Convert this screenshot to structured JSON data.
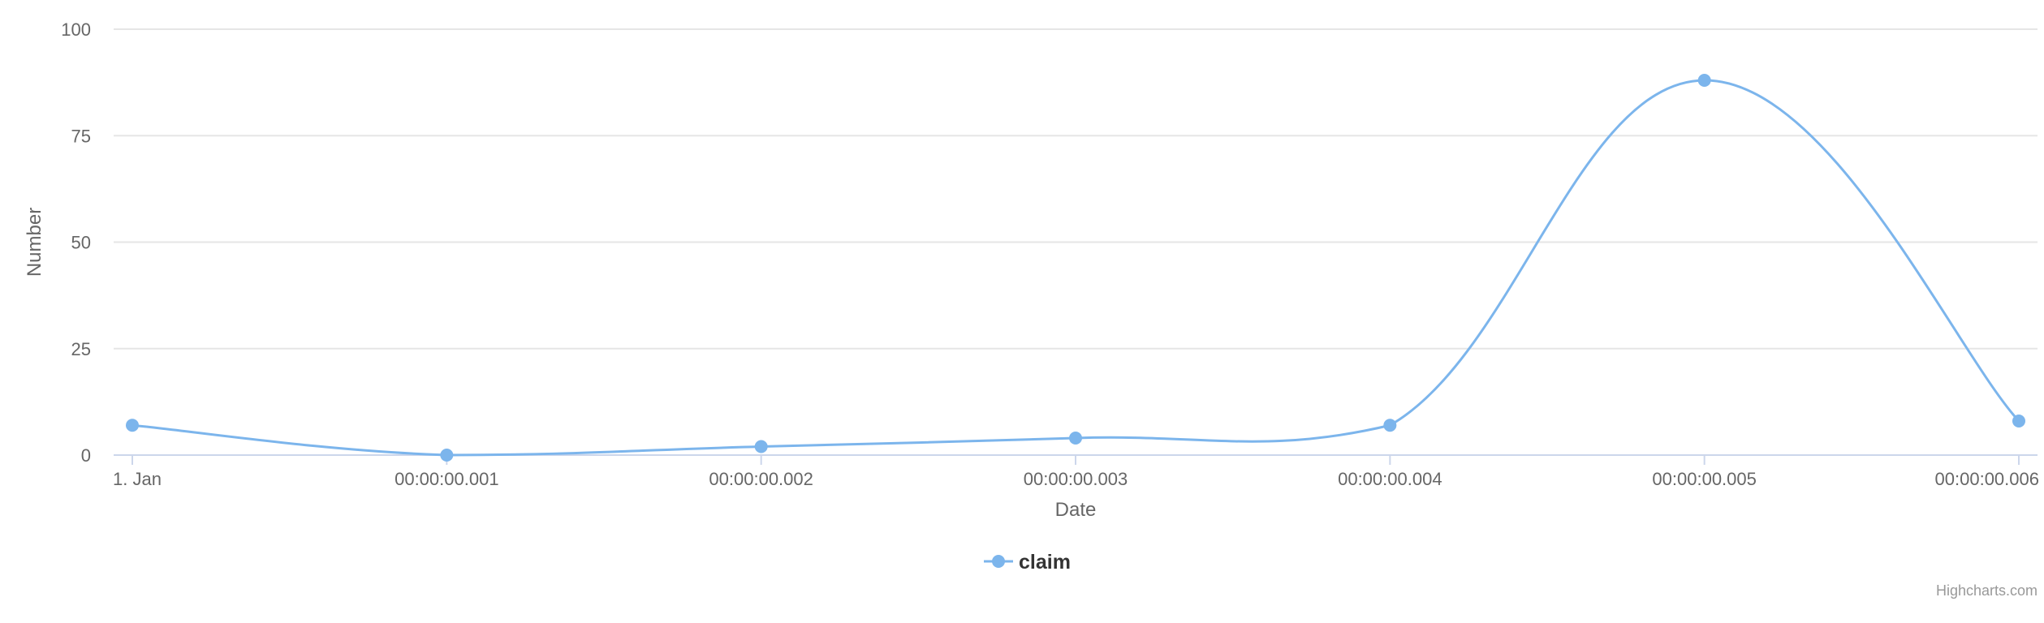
{
  "chart_data": {
    "type": "line",
    "title": "",
    "xlabel": "Date",
    "ylabel": "Number",
    "x": [
      "1. Jan",
      "00:00:00.001",
      "00:00:00.002",
      "00:00:00.003",
      "00:00:00.004",
      "00:00:00.005",
      "00:00:00.006"
    ],
    "series": [
      {
        "name": "claim",
        "color": "#7cb5ec",
        "values": [
          7,
          0,
          2,
          4,
          7,
          88,
          8
        ]
      }
    ],
    "ylim": [
      0,
      100
    ],
    "yticks": [
      0,
      25,
      50,
      75,
      100
    ],
    "curve": "smooth",
    "grid": true,
    "legend": "bottom-center",
    "credits": "Highcharts.com",
    "colors": {
      "grid": "#e6e6e6",
      "axis": "#ccd6eb",
      "text": "#666666"
    }
  }
}
